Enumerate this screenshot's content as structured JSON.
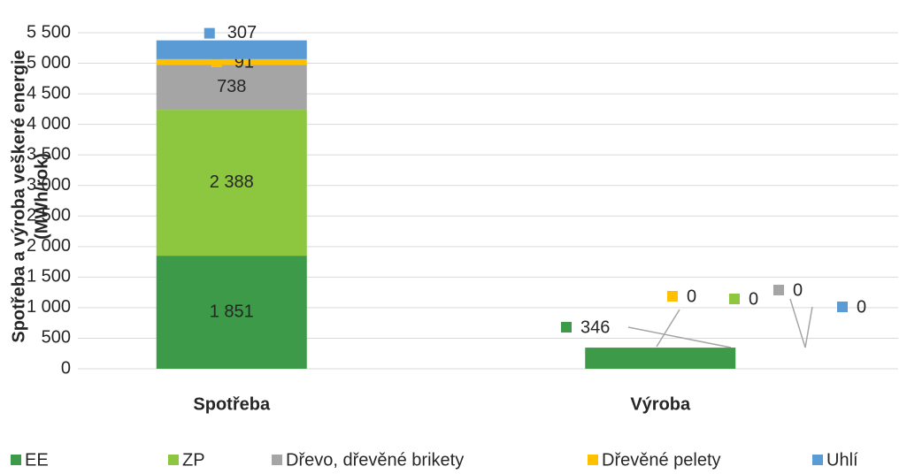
{
  "chart_data": {
    "type": "stacked_bar",
    "y_label": [
      "Spotřeba a výroba veškeré energie",
      "(MWh/rok)"
    ],
    "categories": [
      "Spotřeba",
      "Výroba"
    ],
    "series": [
      {
        "name": "EE",
        "color": "#3d9a48",
        "values": [
          1851,
          346
        ],
        "value_labels": [
          "1 851",
          "346"
        ]
      },
      {
        "name": "ZP",
        "color": "#8dc63f",
        "values": [
          2388,
          0
        ],
        "value_labels": [
          "2 388",
          "0"
        ]
      },
      {
        "name": "Dřevo, dřevěné brikety",
        "color": "#a5a5a5",
        "values": [
          738,
          0
        ]
      },
      {
        "name": "Dřevěné pelety",
        "color": "#ffc000",
        "values": [
          91,
          0
        ]
      },
      {
        "name": "Uhlí",
        "color": "#5b9bd5",
        "values": [
          307,
          0
        ]
      }
    ],
    "ylim": [
      0,
      5500
    ],
    "yticks": [
      0,
      500,
      {
        "value": 1000,
        "label": "1 000"
      },
      {
        "value": 1500,
        "label": "1 500"
      },
      {
        "value": 2000,
        "label": "2 000"
      },
      {
        "value": 2500,
        "label": "2 500"
      },
      {
        "value": 3000,
        "label": "3 000"
      },
      {
        "value": 3500,
        "label": "3 500"
      },
      {
        "value": 4000,
        "label": "4 000"
      },
      {
        "value": 4500,
        "label": "4 500"
      },
      {
        "value": 5000,
        "label": "5 000"
      },
      {
        "value": 5500,
        "label": "5 500"
      }
    ],
    "grid": true,
    "legend": "bottom"
  }
}
